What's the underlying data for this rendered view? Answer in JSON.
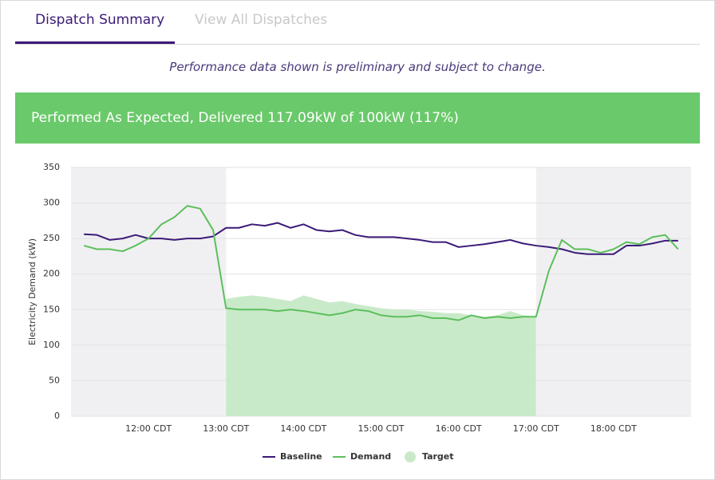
{
  "tabs": [
    "Dispatch Summary",
    "View All Dispatches"
  ],
  "notice": "Performance data shown is preliminary and subject to change.",
  "banner": "Performed As Expected, Delivered 117.09kW of 100kW (117%)",
  "chart_data": {
    "type": "line",
    "y_label": "Electricity Demand (kW)",
    "categories": [
      null,
      null,
      null,
      null,
      null,
      "12:00 CDT",
      null,
      null,
      null,
      null,
      null,
      "13:00 CDT",
      null,
      null,
      null,
      null,
      null,
      "14:00 CDT",
      null,
      null,
      null,
      null,
      null,
      "15:00 CDT",
      null,
      null,
      null,
      null,
      null,
      "16:00 CDT",
      null,
      null,
      null,
      null,
      null,
      "17:00 CDT",
      null,
      null,
      null,
      null,
      null,
      "18:00 CDT",
      null,
      null,
      null,
      null,
      null
    ],
    "ylim": [
      0,
      350
    ],
    "yticks": [
      0,
      50,
      100,
      150,
      200,
      250,
      300,
      350
    ],
    "grid": true,
    "series": [
      {
        "name": "Baseline",
        "color": "#3b1a78",
        "values": [
          256,
          255,
          248,
          250,
          255,
          250,
          250,
          248,
          250,
          250,
          253,
          265,
          265,
          270,
          268,
          272,
          265,
          270,
          262,
          260,
          262,
          255,
          252,
          252,
          252,
          250,
          248,
          245,
          245,
          238,
          240,
          242,
          245,
          248,
          243,
          240,
          238,
          235,
          230,
          228,
          228,
          228,
          240,
          240,
          243,
          247,
          247
        ]
      },
      {
        "name": "Demand",
        "color": "#5cbf5c",
        "values": [
          240,
          235,
          235,
          232,
          240,
          250,
          270,
          280,
          296,
          292,
          262,
          152,
          150,
          150,
          150,
          148,
          150,
          148,
          145,
          142,
          145,
          150,
          148,
          142,
          140,
          140,
          142,
          138,
          138,
          135,
          142,
          138,
          140,
          138,
          140,
          140,
          205,
          248,
          235,
          235,
          230,
          235,
          245,
          242,
          252,
          255,
          235
        ]
      },
      {
        "name": "Target",
        "color": "#c9eac9",
        "type": "area",
        "values": [
          null,
          null,
          null,
          null,
          null,
          null,
          null,
          null,
          null,
          null,
          null,
          165,
          168,
          170,
          168,
          165,
          162,
          170,
          165,
          160,
          162,
          158,
          155,
          152,
          150,
          150,
          148,
          147,
          145,
          145,
          142,
          140,
          142,
          148,
          142,
          140,
          null,
          null,
          null,
          null,
          null,
          null,
          null,
          null,
          null,
          null,
          null
        ]
      }
    ]
  }
}
